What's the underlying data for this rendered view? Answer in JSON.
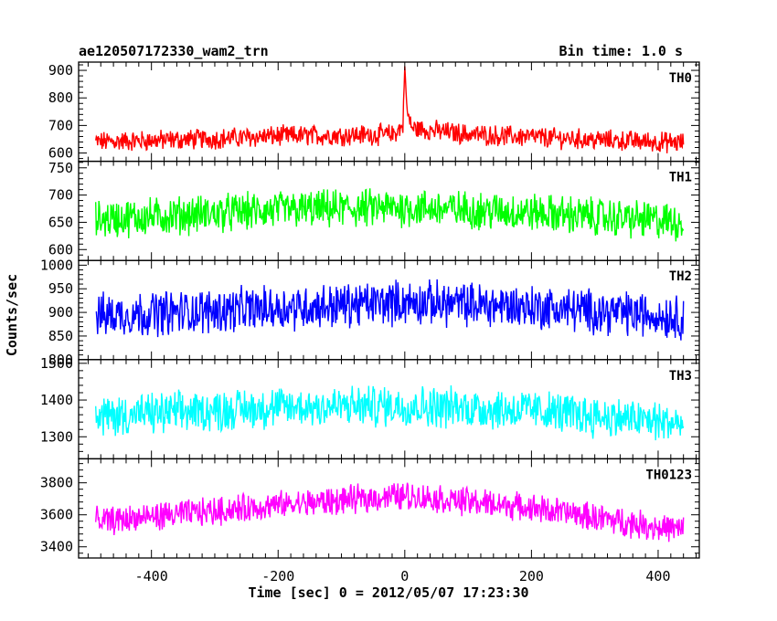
{
  "header": {
    "title": "ae120507172330_wam2_trn",
    "bin_time": "Bin time: 1.0 s"
  },
  "chart_data": {
    "type": "line",
    "xlabel": "Time [sec] 0 = 2012/05/07 17:23:30",
    "ylabel": "Counts/sec",
    "xlim": [
      -515,
      465
    ],
    "xticks": [
      -400,
      -200,
      0,
      200,
      400
    ],
    "grid": false,
    "panels": [
      {
        "name": "TH0",
        "color": "#ff0000",
        "ylim": [
          570,
          930
        ],
        "yticks": [
          600,
          700,
          800,
          900
        ],
        "profile": [
          {
            "x": -490,
            "y": 640
          },
          {
            "x": -300,
            "y": 652
          },
          {
            "x": -200,
            "y": 662
          },
          {
            "x": -20,
            "y": 667
          },
          {
            "x": -3,
            "y": 695
          },
          {
            "x": 0,
            "y": 915
          },
          {
            "x": 4,
            "y": 740
          },
          {
            "x": 12,
            "y": 690
          },
          {
            "x": 100,
            "y": 668
          },
          {
            "x": 300,
            "y": 648
          },
          {
            "x": 440,
            "y": 637
          }
        ],
        "noise_amplitude": 32
      },
      {
        "name": "TH1",
        "color": "#00ff00",
        "ylim": [
          580,
          762
        ],
        "yticks": [
          600,
          650,
          700,
          750
        ],
        "profile": [
          {
            "x": -490,
            "y": 655
          },
          {
            "x": -200,
            "y": 672
          },
          {
            "x": 0,
            "y": 677
          },
          {
            "x": 200,
            "y": 668
          },
          {
            "x": 440,
            "y": 650
          }
        ],
        "noise_amplitude": 30
      },
      {
        "name": "TH2",
        "color": "#0000ff",
        "ylim": [
          800,
          1010
        ],
        "yticks": [
          800,
          850,
          900,
          950,
          1000
        ],
        "profile": [
          {
            "x": -490,
            "y": 893
          },
          {
            "x": -150,
            "y": 912
          },
          {
            "x": 0,
            "y": 922
          },
          {
            "x": 200,
            "y": 912
          },
          {
            "x": 440,
            "y": 890
          }
        ],
        "noise_amplitude": 40
      },
      {
        "name": "TH3",
        "color": "#00ffff",
        "ylim": [
          1240,
          1510
        ],
        "yticks": [
          1300,
          1400,
          1500
        ],
        "profile": [
          {
            "x": -490,
            "y": 1355
          },
          {
            "x": -200,
            "y": 1380
          },
          {
            "x": 0,
            "y": 1385
          },
          {
            "x": 200,
            "y": 1372
          },
          {
            "x": 440,
            "y": 1335
          }
        ],
        "noise_amplitude": 48
      },
      {
        "name": "TH0123",
        "color": "#ff00ff",
        "ylim": [
          3330,
          3950
        ],
        "yticks": [
          3400,
          3600,
          3800
        ],
        "profile": [
          {
            "x": -490,
            "y": 3555
          },
          {
            "x": -200,
            "y": 3660
          },
          {
            "x": -50,
            "y": 3705
          },
          {
            "x": 0,
            "y": 3720
          },
          {
            "x": 200,
            "y": 3645
          },
          {
            "x": 440,
            "y": 3500
          }
        ],
        "noise_amplitude": 75
      }
    ]
  }
}
